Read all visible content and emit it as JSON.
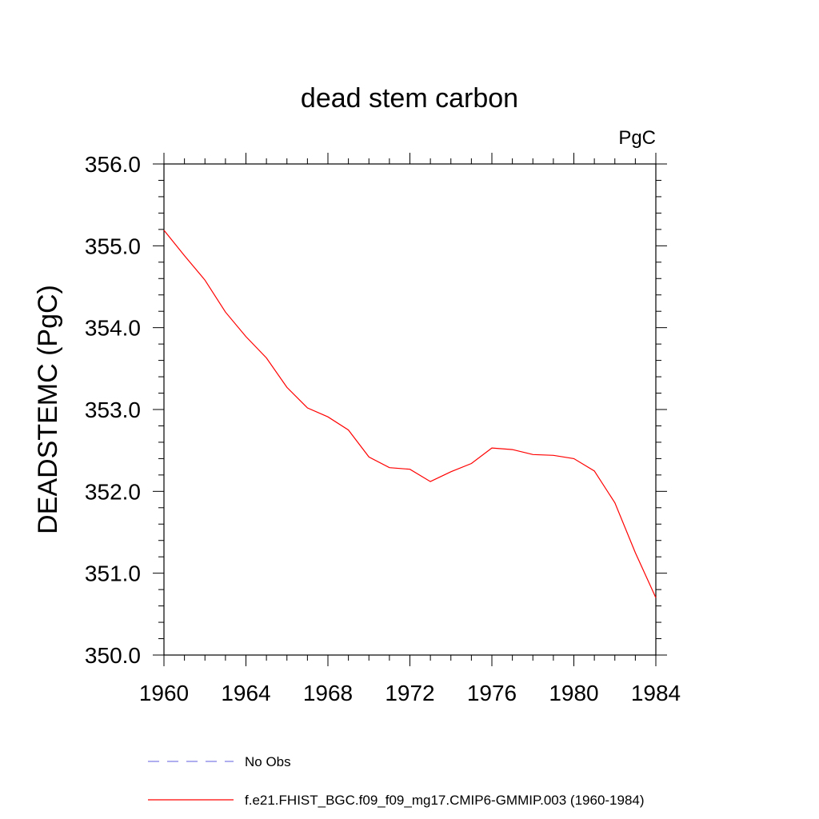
{
  "chart_data": {
    "type": "line",
    "title": "dead stem carbon",
    "units_label": "PgC",
    "ylabel": "DEADSTEMC  (PgC)",
    "xlabel": "",
    "xlim": [
      1960,
      1984
    ],
    "ylim": [
      350.0,
      356.0
    ],
    "x_ticks": [
      1960,
      1964,
      1968,
      1972,
      1976,
      1980,
      1984
    ],
    "y_ticks": [
      "350.0",
      "351.0",
      "352.0",
      "353.0",
      "354.0",
      "355.0",
      "356.0"
    ],
    "grid": false,
    "series": [
      {
        "name": "f.e21.FHIST_BGC.f09_f09_mg17.CMIP6-GMMIP.003 (1960-1984)",
        "color": "#ff0000",
        "style": "solid",
        "x": [
          1960,
          1961,
          1962,
          1963,
          1964,
          1965,
          1966,
          1967,
          1968,
          1969,
          1970,
          1971,
          1972,
          1973,
          1974,
          1975,
          1976,
          1977,
          1978,
          1979,
          1980,
          1981,
          1982,
          1983,
          1984
        ],
        "y": [
          355.19,
          354.88,
          354.58,
          354.19,
          353.89,
          353.63,
          353.27,
          353.02,
          352.91,
          352.75,
          352.42,
          352.29,
          352.27,
          352.12,
          352.24,
          352.34,
          352.53,
          352.51,
          352.45,
          352.44,
          352.4,
          352.25,
          351.86,
          351.25,
          350.7
        ]
      },
      {
        "name": "No Obs",
        "color": "#7f7fe6",
        "style": "dashed",
        "x": [],
        "y": []
      }
    ],
    "legend": {
      "placement": "bottom",
      "entries": [
        "No Obs",
        "f.e21.FHIST_BGC.f09_f09_mg17.CMIP6-GMMIP.003 (1960-1984)"
      ]
    }
  }
}
